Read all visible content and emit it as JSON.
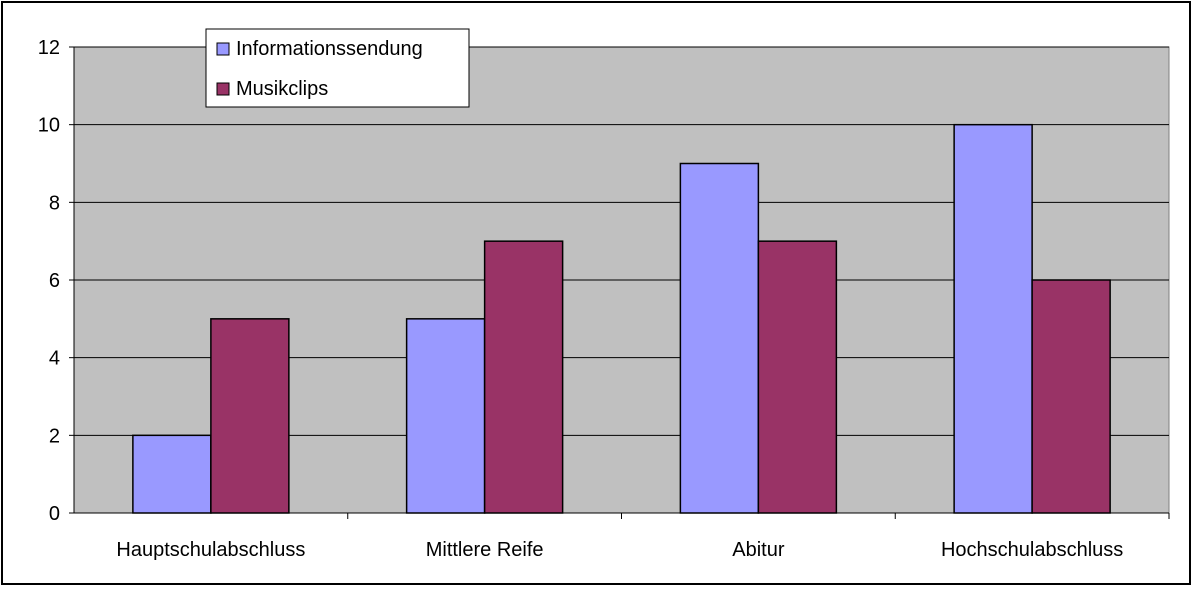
{
  "chart_data": {
    "type": "bar",
    "title": "",
    "xlabel": "",
    "ylabel": "",
    "categories": [
      "Hauptschulabschluss",
      "Mittlere Reife",
      "Abitur",
      "Hochschulabschluss"
    ],
    "series": [
      {
        "name": "Informationssendung",
        "values": [
          2,
          5,
          9,
          10
        ],
        "color": "#9999ff"
      },
      {
        "name": "Musikclips",
        "values": [
          5,
          7,
          7,
          6
        ],
        "color": "#993366"
      }
    ],
    "ylim": [
      0,
      12
    ],
    "yticks": [
      0,
      2,
      4,
      6,
      8,
      10,
      12
    ],
    "grid": true,
    "legend_position": "top-left",
    "plot_background": "#c0c0c0"
  }
}
